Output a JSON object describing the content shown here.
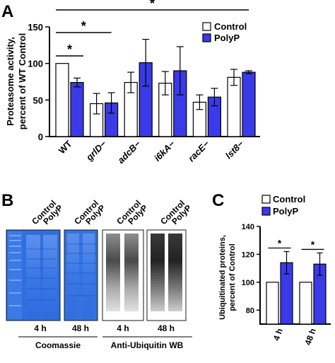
{
  "colors": {
    "control": "#ffffff",
    "polyp": "#3a3ae8",
    "axis": "#000000",
    "error": "#000000",
    "coomassie": "#2f6fe0"
  },
  "panels": {
    "a": {
      "letter": "A"
    },
    "b": {
      "letter": "B"
    },
    "c": {
      "letter": "C"
    }
  },
  "chart_data": [
    {
      "panel": "A",
      "type": "bar",
      "ylabel_line1": "Proteasome activity,",
      "ylabel_line2": "percent of WT Control",
      "ylim": [
        0,
        150
      ],
      "yticks": [
        0,
        50,
        100,
        150
      ],
      "categories": [
        "WT",
        "grlD−",
        "adcB−",
        "i6kA−",
        "racE−",
        "lst8−"
      ],
      "category_italic": [
        false,
        true,
        true,
        true,
        true,
        true
      ],
      "legend_position": "top-right",
      "series": [
        {
          "name": "Control",
          "values": [
            100,
            45,
            74,
            73,
            47,
            81
          ],
          "errors": [
            0,
            14,
            14,
            16,
            10,
            11
          ]
        },
        {
          "name": "PolyP",
          "values": [
            74,
            46,
            101,
            90,
            54,
            88
          ],
          "errors": [
            6,
            14,
            32,
            33,
            12,
            2
          ]
        }
      ],
      "significance": [
        {
          "label": "*",
          "from": "WT Control",
          "to": "WT PolyP"
        },
        {
          "label": "*",
          "from": "WT",
          "to": "grlD−"
        },
        {
          "label": "*",
          "from": "WT",
          "to": "lst8−"
        }
      ]
    },
    {
      "panel": "C",
      "type": "bar",
      "ylabel_line1": "Ubiquitinated proteins,",
      "ylabel_line2": "percent of Control",
      "ylim": [
        70,
        140
      ],
      "yticks": [
        80,
        100,
        120,
        140
      ],
      "categories": [
        "4 h",
        "48 h"
      ],
      "legend_position": "top",
      "series": [
        {
          "name": "Control",
          "values": [
            100,
            100
          ],
          "errors": [
            0,
            0
          ]
        },
        {
          "name": "PolyP",
          "values": [
            114,
            113
          ],
          "errors": [
            8,
            8
          ]
        }
      ],
      "significance": [
        {
          "label": "*",
          "group": "4 h"
        },
        {
          "label": "*",
          "group": "48 h"
        }
      ]
    }
  ],
  "blots": {
    "lane_labels": [
      "Control",
      "PolyP"
    ],
    "timepoints": [
      "4 h",
      "48 h",
      "4 h",
      "48 h"
    ],
    "group_labels": [
      "Coomassie",
      "Anti-Ubiquitin WB"
    ]
  }
}
